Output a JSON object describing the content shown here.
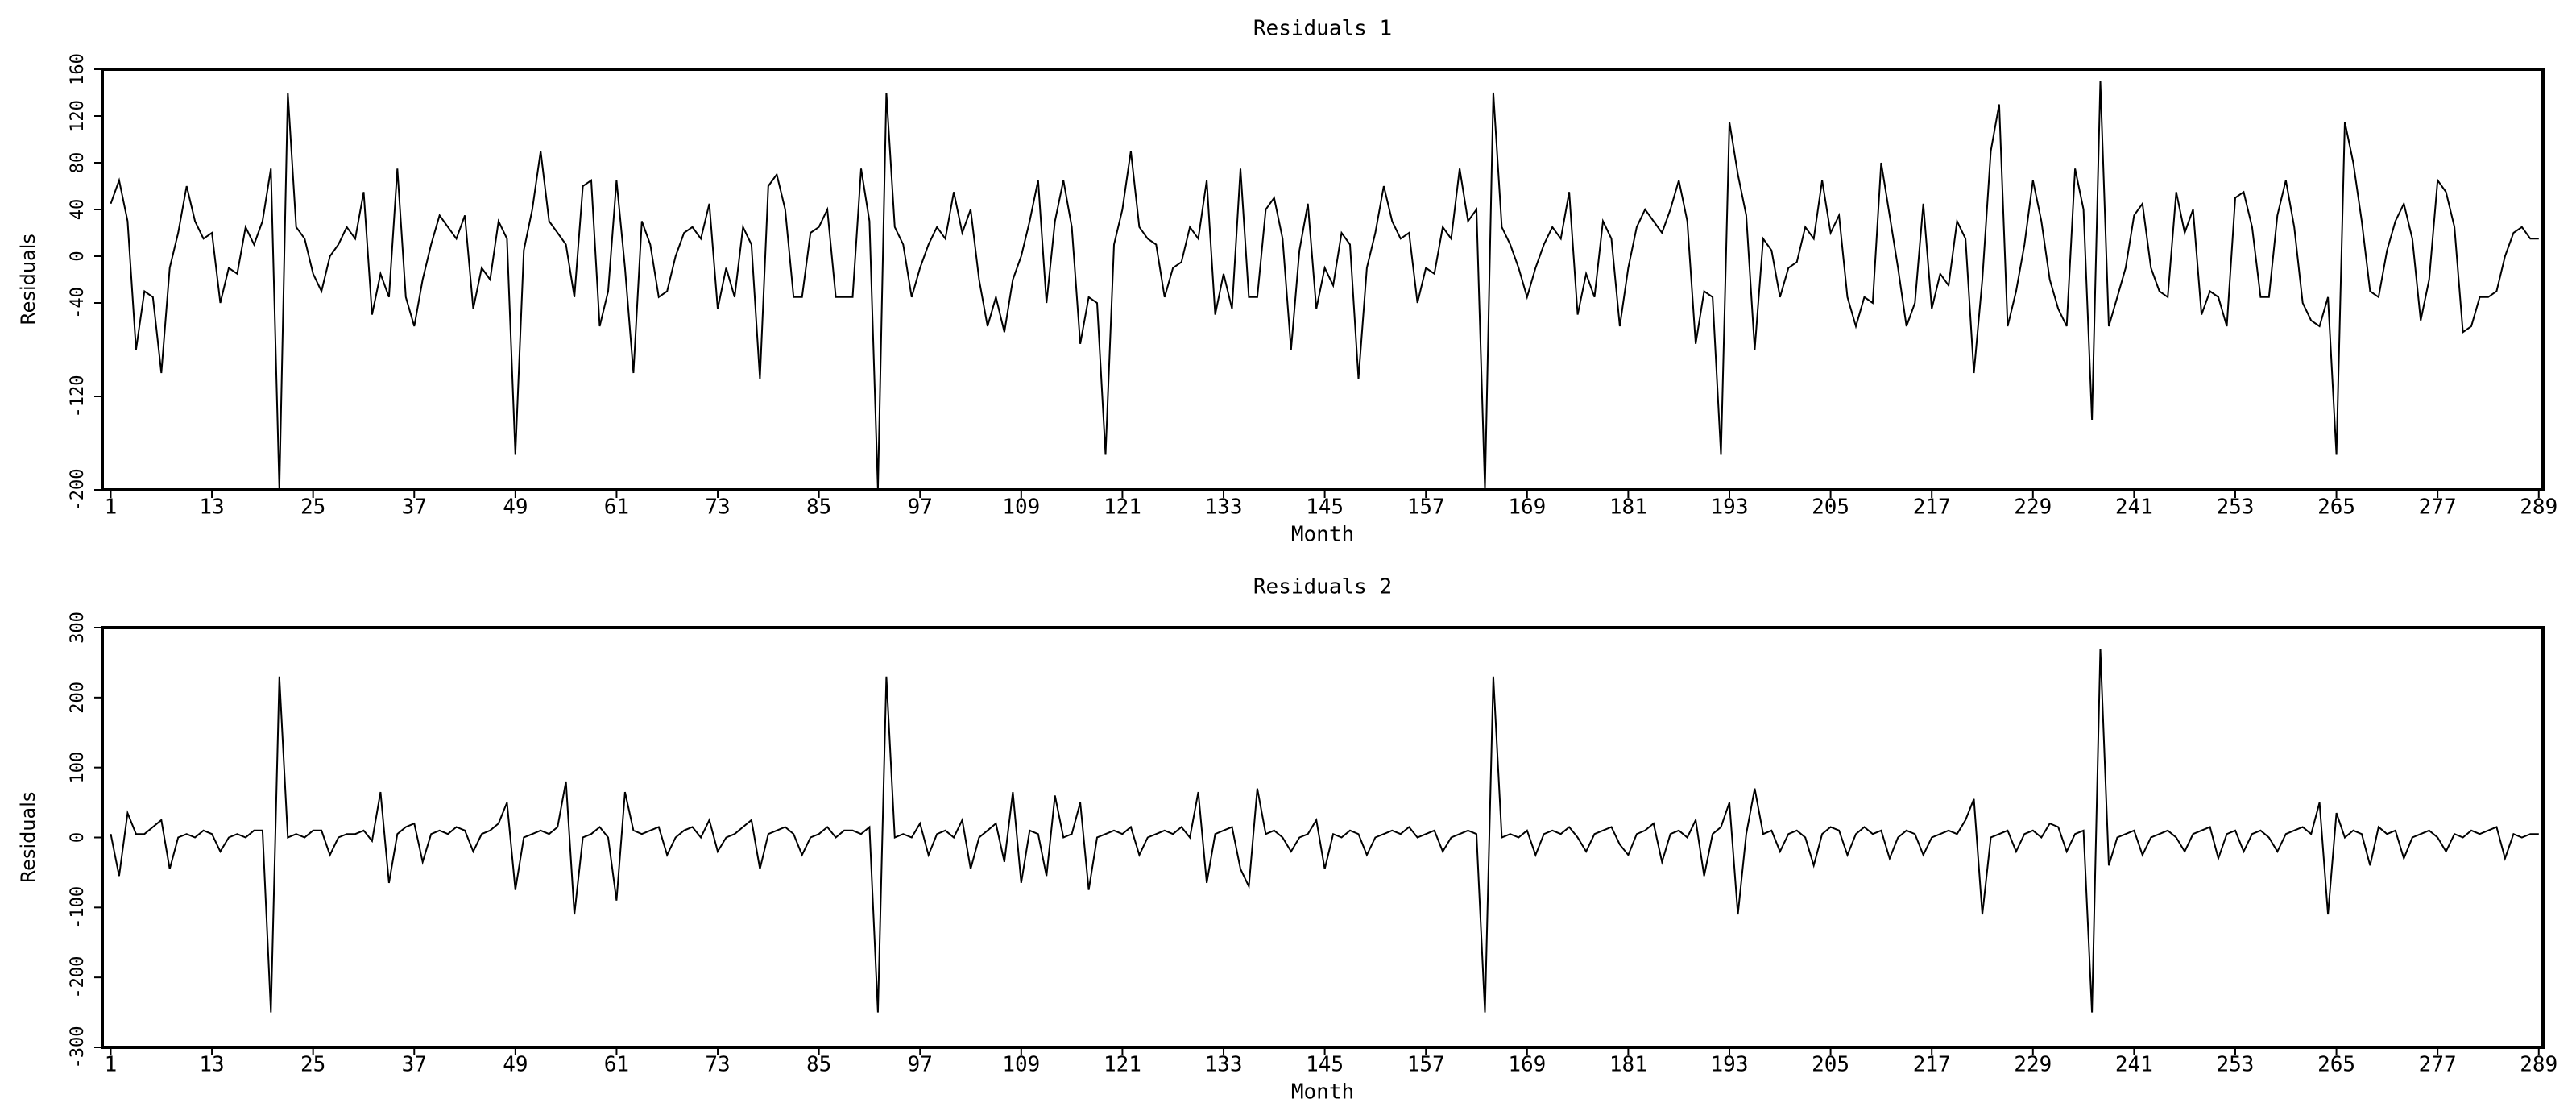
{
  "chart_data": [
    {
      "type": "line",
      "title": "Residuals  1",
      "x_label": "Month",
      "y_label": "Residuals",
      "x": [
        1,
        2,
        3,
        4,
        5,
        6,
        7,
        8,
        9,
        10,
        11,
        12,
        13,
        14,
        15,
        16,
        17,
        18,
        19,
        20,
        21,
        22,
        23,
        24,
        25,
        26,
        27,
        28,
        29,
        30,
        31,
        32,
        33,
        34,
        35,
        36,
        37,
        38,
        39,
        40,
        41,
        42,
        43,
        44,
        45,
        46,
        47,
        48,
        49,
        50,
        51,
        52,
        53,
        54,
        55,
        56,
        57,
        58,
        59,
        60,
        61,
        62,
        63,
        64,
        65,
        66,
        67,
        68,
        69,
        70,
        71,
        72,
        73,
        74,
        75,
        76,
        77,
        78,
        79,
        80,
        81,
        82,
        83,
        84,
        85,
        86,
        87,
        88,
        89,
        90,
        91,
        92,
        93,
        94,
        95,
        96,
        97,
        98,
        99,
        100,
        101,
        102,
        103,
        104,
        105,
        106,
        107,
        108,
        109,
        110,
        111,
        112,
        113,
        114,
        115,
        116,
        117,
        118,
        119,
        120,
        121,
        122,
        123,
        124,
        125,
        126,
        127,
        128,
        129,
        130,
        131,
        132,
        133,
        134,
        135,
        136,
        137,
        138,
        139,
        140,
        141,
        142,
        143,
        144,
        145,
        146,
        147,
        148,
        149,
        150,
        151,
        152,
        153,
        154,
        155,
        156,
        157,
        158,
        159,
        160,
        161,
        162,
        163,
        164,
        165,
        166,
        167,
        168,
        169,
        170,
        171,
        172,
        173,
        174,
        175,
        176,
        177,
        178,
        179,
        180,
        181,
        182,
        183,
        184,
        185,
        186,
        187,
        188,
        189,
        190,
        191,
        192,
        193,
        194,
        195,
        196,
        197,
        198,
        199,
        200,
        201,
        202,
        203,
        204,
        205,
        206,
        207,
        208,
        209,
        210,
        211,
        212,
        213,
        214,
        215,
        216,
        217,
        218,
        219,
        220,
        221,
        222,
        223,
        224,
        225,
        226,
        227,
        228,
        229,
        230,
        231,
        232,
        233,
        234,
        235,
        236,
        237,
        238,
        239,
        240,
        241,
        242,
        243,
        244,
        245,
        246,
        247,
        248,
        249,
        250,
        251,
        252,
        253,
        254,
        255,
        256,
        257,
        258,
        259,
        260,
        261,
        262,
        263,
        264,
        265,
        266,
        267,
        268,
        269,
        270,
        271,
        272,
        273,
        274,
        275,
        276,
        277,
        278,
        279,
        280,
        281,
        282,
        283,
        284,
        285,
        286,
        287,
        288,
        289
      ],
      "series": [
        {
          "name": "Residuals",
          "color": "#000000",
          "values": [
            45,
            65,
            30,
            -80,
            -30,
            -35,
            -100,
            -10,
            20,
            60,
            30,
            15,
            20,
            -40,
            -10,
            -15,
            25,
            10,
            30,
            75,
            -200,
            140,
            25,
            15,
            -15,
            -30,
            0,
            10,
            25,
            15,
            55,
            -50,
            -15,
            -35,
            75,
            -35,
            -60,
            -20,
            10,
            35,
            25,
            15,
            35,
            -45,
            -10,
            -20,
            30,
            15,
            -170,
            5,
            40,
            90,
            30,
            20,
            10,
            -35,
            60,
            65,
            -60,
            -30,
            65,
            -10,
            -100,
            30,
            10,
            -35,
            -30,
            0,
            20,
            25,
            15,
            45,
            -45,
            -10,
            -35,
            25,
            10,
            -105,
            60,
            70,
            40,
            -35,
            -35,
            20,
            25,
            40,
            -35,
            -35,
            -35,
            75,
            30,
            -200,
            140,
            25,
            10,
            -35,
            -10,
            10,
            25,
            15,
            55,
            20,
            40,
            -20,
            -60,
            -35,
            -65,
            -20,
            0,
            30,
            65,
            -40,
            30,
            65,
            25,
            -75,
            -35,
            -40,
            -170,
            10,
            40,
            90,
            25,
            15,
            10,
            -35,
            -10,
            -5,
            25,
            15,
            65,
            -50,
            -15,
            -45,
            75,
            -35,
            -35,
            40,
            50,
            15,
            -80,
            5,
            45,
            -45,
            -10,
            -25,
            20,
            10,
            -105,
            -10,
            20,
            60,
            30,
            15,
            20,
            -40,
            -10,
            -15,
            25,
            15,
            75,
            30,
            40,
            -200,
            140,
            25,
            10,
            -10,
            -35,
            -10,
            10,
            25,
            15,
            55,
            -50,
            -15,
            -35,
            30,
            15,
            -60,
            -10,
            25,
            40,
            30,
            20,
            40,
            65,
            30,
            -75,
            -30,
            -35,
            -170,
            115,
            70,
            35,
            -80,
            15,
            5,
            -35,
            -10,
            -5,
            25,
            15,
            65,
            20,
            35,
            -35,
            -60,
            -35,
            -40,
            80,
            35,
            -10,
            -60,
            -40,
            45,
            -45,
            -15,
            -25,
            30,
            15,
            -100,
            -20,
            90,
            130,
            -60,
            -30,
            10,
            65,
            30,
            -20,
            -45,
            -60,
            75,
            40,
            -140,
            150,
            -60,
            -35,
            -10,
            35,
            45,
            -10,
            -30,
            -35,
            55,
            20,
            40,
            -50,
            -30,
            -35,
            -60,
            50,
            55,
            25,
            -35,
            -35,
            35,
            65,
            25,
            -40,
            -55,
            -60,
            -35,
            -170,
            115,
            80,
            30,
            -30,
            -35,
            5,
            30,
            45,
            15,
            -55,
            -20,
            65,
            55,
            25,
            -65,
            -60,
            -35,
            -35,
            -30,
            0,
            20,
            25,
            15,
            15
          ]
        }
      ],
      "xlim": [
        0,
        289.5
      ],
      "xticks": [
        1,
        13,
        25,
        37,
        49,
        61,
        73,
        85,
        97,
        109,
        121,
        133,
        145,
        157,
        169,
        181,
        193,
        205,
        217,
        229,
        241,
        253,
        265,
        277,
        289
      ],
      "ylim": [
        -200,
        160
      ],
      "yticks": [
        -200,
        -120,
        -40,
        0,
        40,
        80,
        120,
        160
      ]
    },
    {
      "type": "line",
      "title": "Residuals  2",
      "x_label": "Month",
      "y_label": "Residuals",
      "x": [
        1,
        2,
        3,
        4,
        5,
        6,
        7,
        8,
        9,
        10,
        11,
        12,
        13,
        14,
        15,
        16,
        17,
        18,
        19,
        20,
        21,
        22,
        23,
        24,
        25,
        26,
        27,
        28,
        29,
        30,
        31,
        32,
        33,
        34,
        35,
        36,
        37,
        38,
        39,
        40,
        41,
        42,
        43,
        44,
        45,
        46,
        47,
        48,
        49,
        50,
        51,
        52,
        53,
        54,
        55,
        56,
        57,
        58,
        59,
        60,
        61,
        62,
        63,
        64,
        65,
        66,
        67,
        68,
        69,
        70,
        71,
        72,
        73,
        74,
        75,
        76,
        77,
        78,
        79,
        80,
        81,
        82,
        83,
        84,
        85,
        86,
        87,
        88,
        89,
        90,
        91,
        92,
        93,
        94,
        95,
        96,
        97,
        98,
        99,
        100,
        101,
        102,
        103,
        104,
        105,
        106,
        107,
        108,
        109,
        110,
        111,
        112,
        113,
        114,
        115,
        116,
        117,
        118,
        119,
        120,
        121,
        122,
        123,
        124,
        125,
        126,
        127,
        128,
        129,
        130,
        131,
        132,
        133,
        134,
        135,
        136,
        137,
        138,
        139,
        140,
        141,
        142,
        143,
        144,
        145,
        146,
        147,
        148,
        149,
        150,
        151,
        152,
        153,
        154,
        155,
        156,
        157,
        158,
        159,
        160,
        161,
        162,
        163,
        164,
        165,
        166,
        167,
        168,
        169,
        170,
        171,
        172,
        173,
        174,
        175,
        176,
        177,
        178,
        179,
        180,
        181,
        182,
        183,
        184,
        185,
        186,
        187,
        188,
        189,
        190,
        191,
        192,
        193,
        194,
        195,
        196,
        197,
        198,
        199,
        200,
        201,
        202,
        203,
        204,
        205,
        206,
        207,
        208,
        209,
        210,
        211,
        212,
        213,
        214,
        215,
        216,
        217,
        218,
        219,
        220,
        221,
        222,
        223,
        224,
        225,
        226,
        227,
        228,
        229,
        230,
        231,
        232,
        233,
        234,
        235,
        236,
        237,
        238,
        239,
        240,
        241,
        242,
        243,
        244,
        245,
        246,
        247,
        248,
        249,
        250,
        251,
        252,
        253,
        254,
        255,
        256,
        257,
        258,
        259,
        260,
        261,
        262,
        263,
        264,
        265,
        266,
        267,
        268,
        269,
        270,
        271,
        272,
        273,
        274,
        275,
        276,
        277,
        278,
        279,
        280,
        281,
        282,
        283,
        284,
        285,
        286,
        287,
        288,
        289
      ],
      "series": [
        {
          "name": "Residuals",
          "color": "#000000",
          "values": [
            5,
            -55,
            35,
            5,
            5,
            15,
            25,
            -45,
            0,
            5,
            0,
            10,
            5,
            -20,
            0,
            5,
            0,
            10,
            10,
            -250,
            230,
            0,
            5,
            0,
            10,
            10,
            -25,
            0,
            5,
            5,
            10,
            -5,
            65,
            -65,
            5,
            15,
            20,
            -35,
            5,
            10,
            5,
            15,
            10,
            -20,
            5,
            10,
            20,
            50,
            -75,
            0,
            5,
            10,
            5,
            15,
            80,
            -110,
            0,
            5,
            15,
            0,
            -90,
            65,
            10,
            5,
            10,
            15,
            -25,
            0,
            10,
            15,
            0,
            25,
            -20,
            0,
            5,
            15,
            25,
            -45,
            5,
            10,
            15,
            5,
            -25,
            0,
            5,
            15,
            0,
            10,
            10,
            5,
            15,
            -250,
            230,
            0,
            5,
            0,
            20,
            -25,
            5,
            10,
            0,
            25,
            -45,
            0,
            10,
            20,
            -35,
            65,
            -65,
            10,
            5,
            -55,
            60,
            0,
            5,
            50,
            -75,
            0,
            5,
            10,
            5,
            15,
            -25,
            0,
            5,
            10,
            5,
            15,
            0,
            65,
            -65,
            5,
            10,
            15,
            -45,
            -70,
            70,
            5,
            10,
            0,
            -20,
            0,
            5,
            25,
            -45,
            5,
            0,
            10,
            5,
            -25,
            0,
            5,
            10,
            5,
            15,
            0,
            5,
            10,
            -20,
            0,
            5,
            10,
            5,
            -250,
            230,
            0,
            5,
            0,
            10,
            -25,
            5,
            10,
            5,
            15,
            0,
            -20,
            5,
            10,
            15,
            -10,
            -25,
            5,
            10,
            20,
            -35,
            5,
            10,
            0,
            25,
            -55,
            5,
            15,
            50,
            -110,
            5,
            70,
            5,
            10,
            -20,
            5,
            10,
            0,
            -40,
            5,
            15,
            10,
            -25,
            5,
            15,
            5,
            10,
            -30,
            0,
            10,
            5,
            -25,
            0,
            5,
            10,
            5,
            25,
            55,
            -110,
            0,
            5,
            10,
            -20,
            5,
            10,
            0,
            20,
            15,
            -20,
            5,
            10,
            -250,
            270,
            -40,
            0,
            5,
            10,
            -25,
            0,
            5,
            10,
            0,
            -20,
            5,
            10,
            15,
            -30,
            5,
            10,
            -20,
            5,
            10,
            0,
            -20,
            5,
            10,
            15,
            5,
            50,
            -110,
            35,
            0,
            10,
            5,
            -40,
            15,
            5,
            10,
            -30,
            0,
            5,
            10,
            0,
            -20,
            5,
            0,
            10,
            5,
            10,
            15,
            -30,
            5,
            0,
            5,
            5
          ]
        }
      ],
      "xlim": [
        0,
        289.5
      ],
      "xticks": [
        1,
        13,
        25,
        37,
        49,
        61,
        73,
        85,
        97,
        109,
        121,
        133,
        145,
        157,
        169,
        181,
        193,
        205,
        217,
        229,
        241,
        253,
        265,
        277,
        289
      ],
      "ylim": [
        -300,
        300
      ],
      "yticks": [
        -300,
        -200,
        -100,
        0,
        100,
        200,
        300
      ]
    }
  ]
}
